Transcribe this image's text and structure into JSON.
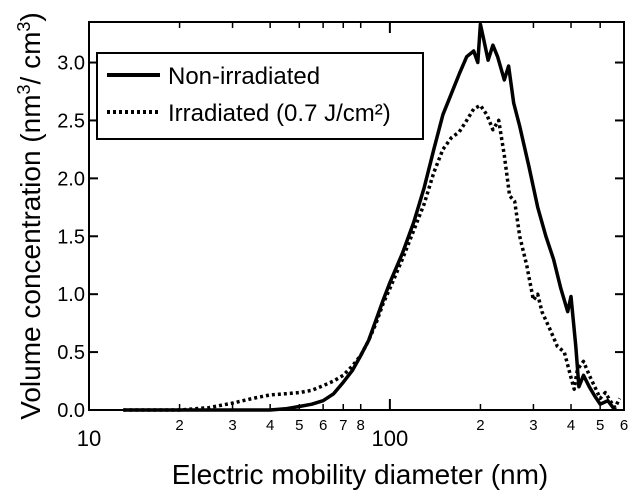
{
  "chart_data": {
    "type": "line",
    "xlabel": "Electric mobility diameter (nm)",
    "ylabel_parts": [
      "Volume concentration (nm",
      "3",
      "/ cm",
      "3",
      ")"
    ],
    "x_scale": "log",
    "xlim": [
      10,
      600
    ],
    "ylim": [
      0,
      3.35
    ],
    "x_major_ticks": [
      {
        "value": 10,
        "label": "10"
      },
      {
        "value": 100,
        "label": "100"
      }
    ],
    "x_minor_ticks": [
      {
        "value": 20,
        "label": "2"
      },
      {
        "value": 30,
        "label": "3"
      },
      {
        "value": 40,
        "label": "4"
      },
      {
        "value": 50,
        "label": "5"
      },
      {
        "value": 60,
        "label": "6"
      },
      {
        "value": 70,
        "label": "7"
      },
      {
        "value": 80,
        "label": "8"
      },
      {
        "value": 200,
        "label": "2"
      },
      {
        "value": 300,
        "label": "3"
      },
      {
        "value": 400,
        "label": "4"
      },
      {
        "value": 500,
        "label": "5"
      },
      {
        "value": 600,
        "label": "6"
      }
    ],
    "y_ticks": [
      {
        "value": 0.0,
        "label": "0.0"
      },
      {
        "value": 0.5,
        "label": "0.5"
      },
      {
        "value": 1.0,
        "label": "1.0"
      },
      {
        "value": 1.5,
        "label": "1.5"
      },
      {
        "value": 2.0,
        "label": "2.0"
      },
      {
        "value": 2.5,
        "label": "2.5"
      },
      {
        "value": 3.0,
        "label": "3.0"
      }
    ],
    "legend_position": "top-left",
    "series": [
      {
        "name": "Non-irradiated",
        "style": "solid",
        "color": "#000000",
        "points": [
          [
            13,
            0.0
          ],
          [
            20,
            0.0
          ],
          [
            30,
            0.0
          ],
          [
            40,
            0.0
          ],
          [
            45,
            0.01
          ],
          [
            50,
            0.03
          ],
          [
            55,
            0.05
          ],
          [
            60,
            0.08
          ],
          [
            65,
            0.14
          ],
          [
            70,
            0.24
          ],
          [
            75,
            0.34
          ],
          [
            80,
            0.47
          ],
          [
            85,
            0.6
          ],
          [
            90,
            0.78
          ],
          [
            95,
            0.95
          ],
          [
            100,
            1.1
          ],
          [
            110,
            1.35
          ],
          [
            120,
            1.62
          ],
          [
            130,
            1.92
          ],
          [
            140,
            2.25
          ],
          [
            150,
            2.55
          ],
          [
            160,
            2.73
          ],
          [
            170,
            2.9
          ],
          [
            180,
            3.05
          ],
          [
            190,
            3.1
          ],
          [
            196,
            3.0
          ],
          [
            200,
            3.33
          ],
          [
            205,
            3.2
          ],
          [
            212,
            3.02
          ],
          [
            220,
            3.15
          ],
          [
            228,
            3.05
          ],
          [
            240,
            2.85
          ],
          [
            248,
            2.97
          ],
          [
            258,
            2.65
          ],
          [
            270,
            2.45
          ],
          [
            290,
            2.1
          ],
          [
            310,
            1.75
          ],
          [
            330,
            1.5
          ],
          [
            350,
            1.3
          ],
          [
            370,
            1.05
          ],
          [
            390,
            0.85
          ],
          [
            400,
            0.98
          ],
          [
            415,
            0.55
          ],
          [
            425,
            0.2
          ],
          [
            440,
            0.3
          ],
          [
            460,
            0.2
          ],
          [
            480,
            0.12
          ],
          [
            500,
            0.05
          ],
          [
            530,
            0.08
          ],
          [
            560,
            0.0
          ]
        ]
      },
      {
        "name": "Irradiated (0.7 J/cm²)",
        "style": "dotted",
        "color": "#000000",
        "points": [
          [
            13,
            0.0
          ],
          [
            20,
            0.0
          ],
          [
            25,
            0.02
          ],
          [
            30,
            0.06
          ],
          [
            35,
            0.1
          ],
          [
            40,
            0.13
          ],
          [
            45,
            0.14
          ],
          [
            50,
            0.15
          ],
          [
            55,
            0.17
          ],
          [
            60,
            0.21
          ],
          [
            65,
            0.25
          ],
          [
            70,
            0.3
          ],
          [
            75,
            0.38
          ],
          [
            80,
            0.47
          ],
          [
            85,
            0.6
          ],
          [
            90,
            0.75
          ],
          [
            95,
            0.92
          ],
          [
            100,
            1.05
          ],
          [
            110,
            1.3
          ],
          [
            120,
            1.55
          ],
          [
            130,
            1.78
          ],
          [
            140,
            2.05
          ],
          [
            150,
            2.25
          ],
          [
            160,
            2.35
          ],
          [
            170,
            2.4
          ],
          [
            180,
            2.5
          ],
          [
            190,
            2.6
          ],
          [
            200,
            2.63
          ],
          [
            210,
            2.55
          ],
          [
            220,
            2.42
          ],
          [
            230,
            2.5
          ],
          [
            240,
            2.2
          ],
          [
            250,
            1.85
          ],
          [
            260,
            1.8
          ],
          [
            270,
            1.5
          ],
          [
            285,
            1.25
          ],
          [
            300,
            0.95
          ],
          [
            310,
            1.0
          ],
          [
            320,
            0.85
          ],
          [
            340,
            0.7
          ],
          [
            360,
            0.55
          ],
          [
            380,
            0.5
          ],
          [
            400,
            0.28
          ],
          [
            410,
            0.18
          ],
          [
            420,
            0.35
          ],
          [
            440,
            0.42
          ],
          [
            460,
            0.3
          ],
          [
            480,
            0.2
          ],
          [
            500,
            0.1
          ],
          [
            520,
            0.15
          ],
          [
            540,
            0.08
          ],
          [
            560,
            0.02
          ],
          [
            580,
            0.1
          ]
        ]
      }
    ]
  }
}
